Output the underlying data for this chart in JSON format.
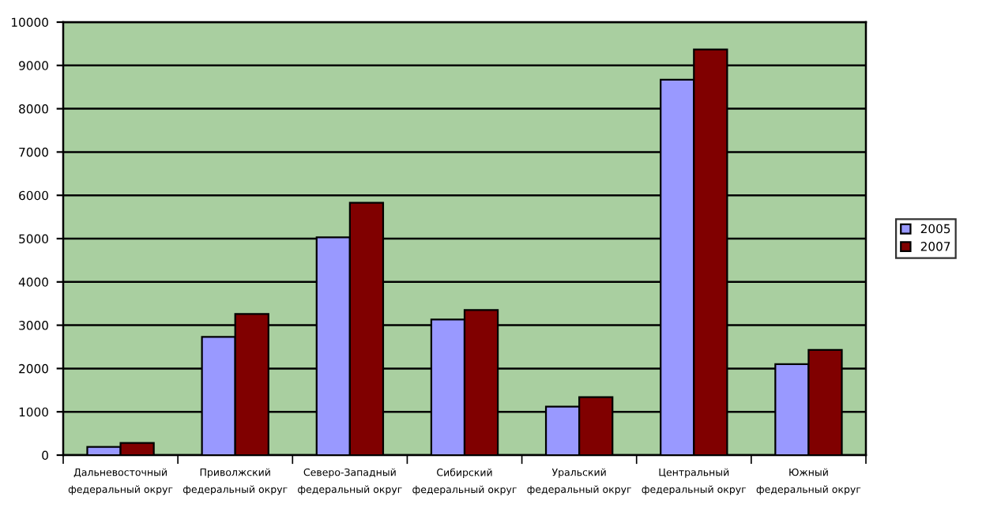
{
  "chart_data": {
    "type": "bar",
    "categories": [
      "Дальневосточный федеральный округ",
      "Приволжский федеральный округ",
      "Северо-Западный федеральный округ",
      "Сибирский федеральный округ",
      "Уральский федеральный округ",
      "Центральный федеральный округ",
      "Южный федеральный округ"
    ],
    "series": [
      {
        "name": "2005",
        "color": "#9999ff",
        "values": [
          190,
          2730,
          5030,
          3130,
          1120,
          8670,
          2100
        ]
      },
      {
        "name": "2007",
        "color": "#800000",
        "values": [
          280,
          3260,
          5830,
          3350,
          1340,
          9370,
          2430
        ]
      }
    ],
    "ylim": [
      0,
      10000
    ],
    "yticks": [
      0,
      1000,
      2000,
      3000,
      4000,
      5000,
      6000,
      7000,
      8000,
      9000,
      10000
    ],
    "grid": "y",
    "legend": "right"
  }
}
